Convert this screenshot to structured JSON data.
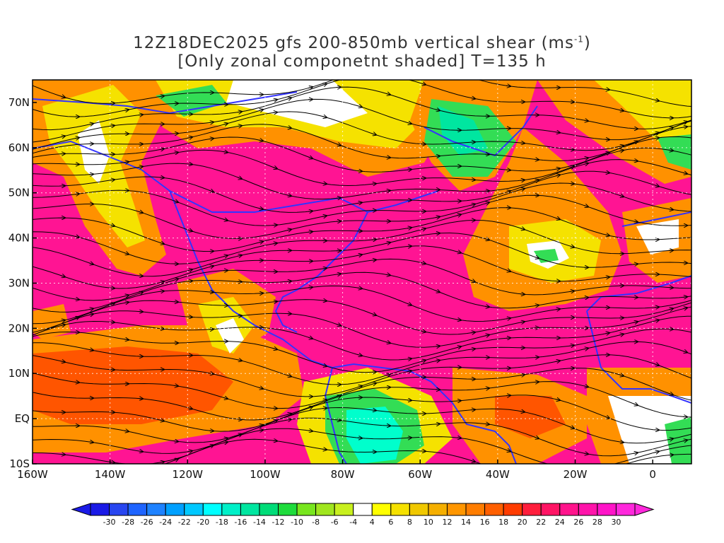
{
  "title": {
    "line1_prefix": "12Z18DEC2025 gfs 200-850mb vertical shear (ms",
    "line1_superscript": "-1",
    "line1_suffix": ")",
    "line2": "[Only zonal componetnt shaded] T=135 h"
  },
  "map": {
    "lon_ticks": [
      "160W",
      "140W",
      "120W",
      "100W",
      "80W",
      "60W",
      "40W",
      "20W",
      "0"
    ],
    "lat_ticks": [
      "70N",
      "60N",
      "50N",
      "40N",
      "30N",
      "20N",
      "10N",
      "EQ",
      "10S"
    ],
    "lon_range": [
      -160,
      10
    ],
    "lat_range": [
      -10,
      75
    ],
    "colors": {
      "magenta": "#ff1493",
      "red_orange": "#ff5500",
      "orange": "#ff9100",
      "yellow": "#f5e200",
      "green": "#33dd55",
      "cyan": "#00ffcc",
      "coastline": "#3333ff",
      "streamline": "#000000",
      "contour": "#8800aa"
    }
  },
  "colorbar": {
    "ticks": [
      "-30",
      "-28",
      "-26",
      "-24",
      "-22",
      "-20",
      "-18",
      "-16",
      "-14",
      "-12",
      "-10",
      "-8",
      "-6",
      "-4",
      "4",
      "6",
      "8",
      "10",
      "12",
      "14",
      "16",
      "18",
      "20",
      "22",
      "24",
      "26",
      "28",
      "30"
    ],
    "colors": [
      "#1a1ae6",
      "#2846f0",
      "#1e64ff",
      "#1e82ff",
      "#00a0ff",
      "#00c8ff",
      "#00ffff",
      "#00f0c8",
      "#00e6a0",
      "#00dc78",
      "#1edc3c",
      "#78e61e",
      "#a0e61e",
      "#c8f01e",
      "#ffffff",
      "#ffff00",
      "#f5e100",
      "#f0c800",
      "#f5af00",
      "#ff9600",
      "#ff7d00",
      "#ff5f00",
      "#ff3c00",
      "#ff1e3c",
      "#ff1464",
      "#ff148c",
      "#ff14aa",
      "#ff14c8",
      "#ff28dc"
    ]
  }
}
